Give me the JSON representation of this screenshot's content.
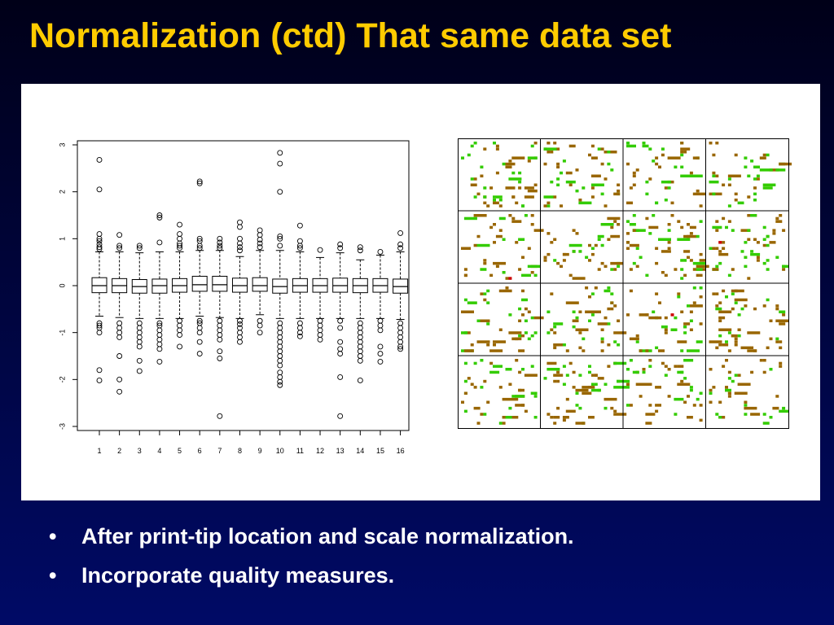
{
  "slide": {
    "title": "Normalization (ctd) That same data set",
    "bullets": [
      "After print-tip location and scale normalization.",
      "Incorporate quality measures."
    ],
    "bullet_glyph": "•",
    "colors": {
      "title": "#ffcc00",
      "text": "#ffffff",
      "background_top": "#000018",
      "background_bottom": "#000a66",
      "heat_brown": "#996600",
      "heat_green": "#33cc00",
      "heat_red": "#cc0000"
    }
  },
  "chart_data": [
    {
      "type": "box",
      "title": "",
      "xlabel": "",
      "ylabel": "",
      "categories": [
        "1",
        "2",
        "3",
        "4",
        "5",
        "6",
        "7",
        "8",
        "9",
        "10",
        "11",
        "12",
        "13",
        "14",
        "15",
        "16"
      ],
      "yticks": [
        "-3",
        "-2",
        "-1",
        "0",
        "1",
        "2",
        "3"
      ],
      "ylim": [
        -3,
        3
      ],
      "grid": false,
      "boxes": [
        {
          "median": 0.0,
          "q1": -0.15,
          "q3": 0.17,
          "whisker_low": -0.65,
          "whisker_high": 0.72,
          "outliers": [
            2.68,
            2.05,
            1.1,
            1.0,
            0.95,
            0.88,
            0.82,
            0.78,
            -0.8,
            -0.85,
            -0.9,
            -1.0,
            -1.8,
            -2.02
          ]
        },
        {
          "median": 0.0,
          "q1": -0.15,
          "q3": 0.15,
          "whisker_low": -0.68,
          "whisker_high": 0.72,
          "outliers": [
            1.08,
            0.85,
            0.8,
            -0.8,
            -0.9,
            -1.0,
            -1.1,
            -1.5,
            -2.0,
            -2.26
          ]
        },
        {
          "median": -0.02,
          "q1": -0.16,
          "q3": 0.13,
          "whisker_low": -0.7,
          "whisker_high": 0.7,
          "outliers": [
            0.85,
            0.8,
            -0.8,
            -0.9,
            -1.0,
            -1.1,
            -1.2,
            -1.3,
            -1.6,
            -1.82
          ]
        },
        {
          "median": 0.0,
          "q1": -0.16,
          "q3": 0.14,
          "whisker_low": -0.7,
          "whisker_high": 0.72,
          "outliers": [
            1.5,
            1.45,
            0.92,
            -0.8,
            -0.85,
            -0.95,
            -1.05,
            -1.15,
            -1.25,
            -1.35,
            -1.62
          ]
        },
        {
          "median": 0.0,
          "q1": -0.14,
          "q3": 0.15,
          "whisker_low": -0.7,
          "whisker_high": 0.72,
          "outliers": [
            1.3,
            1.1,
            1.0,
            0.9,
            0.85,
            0.8,
            -0.75,
            -0.85,
            -0.95,
            -1.05,
            -1.3
          ]
        },
        {
          "median": 0.02,
          "q1": -0.12,
          "q3": 0.2,
          "whisker_low": -0.65,
          "whisker_high": 0.75,
          "outliers": [
            2.22,
            2.18,
            1.0,
            0.95,
            0.85,
            0.8,
            -0.75,
            -0.8,
            -0.9,
            -1.0,
            -1.2,
            -1.45
          ]
        },
        {
          "median": 0.02,
          "q1": -0.12,
          "q3": 0.2,
          "whisker_low": -0.68,
          "whisker_high": 0.75,
          "outliers": [
            1.0,
            0.92,
            0.85,
            0.8,
            -0.75,
            -0.85,
            -0.95,
            -1.05,
            -1.15,
            -1.4,
            -1.55,
            -2.78
          ]
        },
        {
          "median": 0.0,
          "q1": -0.14,
          "q3": 0.16,
          "whisker_low": -0.7,
          "whisker_high": 0.62,
          "outliers": [
            1.35,
            1.25,
            1.0,
            0.9,
            0.82,
            0.75,
            -0.75,
            -0.82,
            -0.9,
            -1.0,
            -1.1,
            -1.2
          ]
        },
        {
          "median": 0.0,
          "q1": -0.12,
          "q3": 0.17,
          "whisker_low": -0.62,
          "whisker_high": 0.75,
          "outliers": [
            1.18,
            1.08,
            0.98,
            0.9,
            0.82,
            -0.75,
            -0.85,
            -1.0
          ]
        },
        {
          "median": -0.02,
          "q1": -0.16,
          "q3": 0.14,
          "whisker_low": -0.7,
          "whisker_high": 0.75,
          "outliers": [
            2.83,
            2.6,
            2.0,
            1.05,
            1.0,
            0.85,
            -0.8,
            -0.9,
            -1.0,
            -1.1,
            -1.2,
            -1.3,
            -1.4,
            -1.5,
            -1.6,
            -1.7,
            -1.85,
            -1.95,
            -2.05,
            -2.12
          ]
        },
        {
          "median": 0.0,
          "q1": -0.14,
          "q3": 0.15,
          "whisker_low": -0.7,
          "whisker_high": 0.72,
          "outliers": [
            1.28,
            0.95,
            0.85,
            0.8,
            -0.8,
            -0.9,
            -1.0,
            -1.08
          ]
        },
        {
          "median": 0.0,
          "q1": -0.14,
          "q3": 0.15,
          "whisker_low": -0.7,
          "whisker_high": 0.6,
          "outliers": [
            0.76,
            -0.75,
            -0.85,
            -0.95,
            -1.05,
            -1.15
          ]
        },
        {
          "median": 0.0,
          "q1": -0.14,
          "q3": 0.16,
          "whisker_low": -0.7,
          "whisker_high": 0.7,
          "outliers": [
            0.88,
            0.8,
            -0.75,
            -0.9,
            -1.2,
            -1.35,
            -1.45,
            -1.95,
            -2.78
          ]
        },
        {
          "median": 0.0,
          "q1": -0.15,
          "q3": 0.15,
          "whisker_low": -0.7,
          "whisker_high": 0.55,
          "outliers": [
            0.82,
            0.75,
            -0.8,
            -0.9,
            -1.0,
            -1.1,
            -1.2,
            -1.3,
            -1.4,
            -1.5,
            -1.6,
            -2.02
          ]
        },
        {
          "median": 0.0,
          "q1": -0.14,
          "q3": 0.15,
          "whisker_low": -0.7,
          "whisker_high": 0.65,
          "outliers": [
            0.72,
            -0.75,
            -0.85,
            -0.95,
            -1.3,
            -1.45,
            -1.62
          ]
        },
        {
          "median": -0.02,
          "q1": -0.16,
          "q3": 0.14,
          "whisker_low": -0.72,
          "whisker_high": 0.72,
          "outliers": [
            1.12,
            0.88,
            0.8,
            -0.8,
            -0.9,
            -1.0,
            -1.1,
            -1.2,
            -1.3,
            -1.35
          ]
        }
      ]
    },
    {
      "type": "heatmap",
      "title": "",
      "grid_rows": 4,
      "grid_cols": 4,
      "legend": false,
      "values": "spot-level marks in brown, green and red on a white background, arranged in a 4 by 4 grid of print-tip blocks (no printed values)"
    }
  ]
}
